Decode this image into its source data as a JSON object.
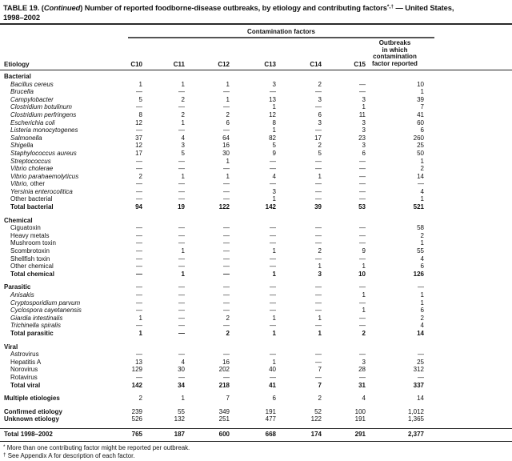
{
  "title": {
    "part1": "TABLE 19. (",
    "continued": "Continued",
    "part2": ") Number of reported foodborne-disease outbreaks, by etiology and contributing factors",
    "superscript": "*,†",
    "part3": " — United States,",
    "line2": "1998–2002"
  },
  "table": {
    "span_header": "Contamination factors",
    "etiology_header": "Etiology",
    "columns": [
      "C10",
      "C11",
      "C12",
      "C13",
      "C14",
      "C15"
    ],
    "last_col_lines": [
      "Outbreaks",
      "in which",
      "contamination",
      "factor reported"
    ],
    "sections": [
      {
        "header": "Bacterial",
        "header_values": null,
        "rows": [
          {
            "li": "Bacillus cereus",
            "vals": [
              "1",
              "1",
              "1",
              "3",
              "2",
              "—",
              "10"
            ]
          },
          {
            "li": "Brucella",
            "vals": [
              "—",
              "—",
              "—",
              "—",
              "—",
              "—",
              "1"
            ]
          },
          {
            "li": "Campylobacter",
            "vals": [
              "5",
              "2",
              "1",
              "13",
              "3",
              "3",
              "39"
            ]
          },
          {
            "li": "Clostridium botulinum",
            "vals": [
              "—",
              "—",
              "—",
              "1",
              "—",
              "1",
              "7"
            ]
          },
          {
            "li": "Clostridium perfringens",
            "vals": [
              "8",
              "2",
              "2",
              "12",
              "6",
              "11",
              "41"
            ]
          },
          {
            "li": "Escherichia coli",
            "vals": [
              "12",
              "1",
              "6",
              "8",
              "3",
              "3",
              "60"
            ]
          },
          {
            "li": "Listeria monocytogenes",
            "vals": [
              "—",
              "—",
              "—",
              "1",
              "—",
              "3",
              "6"
            ]
          },
          {
            "li": "Salmonella",
            "vals": [
              "37",
              "4",
              "64",
              "82",
              "17",
              "23",
              "260"
            ]
          },
          {
            "li": "Shigella",
            "vals": [
              "12",
              "3",
              "16",
              "5",
              "2",
              "3",
              "25"
            ]
          },
          {
            "li": "Staphylococcus aureus",
            "vals": [
              "17",
              "5",
              "30",
              "9",
              "5",
              "6",
              "50"
            ]
          },
          {
            "li": "Streptococcus",
            "vals": [
              "—",
              "—",
              "1",
              "—",
              "—",
              "—",
              "1"
            ]
          },
          {
            "li": "Vibrio cholerae",
            "vals": [
              "—",
              "—",
              "—",
              "—",
              "—",
              "—",
              "2"
            ]
          },
          {
            "li": "Vibrio parahaemolyticus",
            "vals": [
              "2",
              "1",
              "1",
              "4",
              "1",
              "—",
              "14"
            ]
          },
          {
            "li": "Vibrio,",
            "lt": " other",
            "vals": [
              "—",
              "—",
              "—",
              "—",
              "—",
              "—",
              "—"
            ]
          },
          {
            "li": "Yersinia enterocolitica",
            "vals": [
              "—",
              "—",
              "—",
              "3",
              "—",
              "—",
              "4"
            ]
          },
          {
            "lt": "Other bacterial",
            "vals": [
              "—",
              "—",
              "—",
              "1",
              "—",
              "—",
              "1"
            ]
          },
          {
            "lt": "Total bacterial",
            "bold": true,
            "vals": [
              "94",
              "19",
              "122",
              "142",
              "39",
              "53",
              "521"
            ]
          }
        ]
      },
      {
        "header": "Chemical",
        "header_values": null,
        "rows": [
          {
            "lt": "Ciguatoxin",
            "vals": [
              "—",
              "—",
              "—",
              "—",
              "—",
              "—",
              "58"
            ]
          },
          {
            "lt": "Heavy metals",
            "vals": [
              "—",
              "—",
              "—",
              "—",
              "—",
              "—",
              "2"
            ]
          },
          {
            "lt": "Mushroom toxin",
            "vals": [
              "—",
              "—",
              "—",
              "—",
              "—",
              "—",
              "1"
            ]
          },
          {
            "lt": "Scombrotoxin",
            "vals": [
              "—",
              "1",
              "—",
              "1",
              "2",
              "9",
              "55"
            ]
          },
          {
            "lt": "Shellfish toxin",
            "vals": [
              "—",
              "—",
              "—",
              "—",
              "—",
              "—",
              "4"
            ]
          },
          {
            "lt": "Other chemical",
            "vals": [
              "—",
              "—",
              "—",
              "—",
              "1",
              "1",
              "6"
            ]
          },
          {
            "lt": "Total chemical",
            "bold": true,
            "vals": [
              "—",
              "1",
              "—",
              "1",
              "3",
              "10",
              "126"
            ]
          }
        ]
      },
      {
        "header": "Parasitic",
        "header_values": [
          "—",
          "—",
          "—",
          "—",
          "—",
          "—",
          "—"
        ],
        "rows": [
          {
            "li": "Anisakis",
            "vals": [
              "—",
              "—",
              "—",
              "—",
              "—",
              "1",
              "1"
            ]
          },
          {
            "li": "Cryptosporidium parvum",
            "vals": [
              "—",
              "—",
              "—",
              "—",
              "—",
              "—",
              "1"
            ]
          },
          {
            "li": "Cyclospora cayetanensis",
            "vals": [
              "—",
              "—",
              "—",
              "—",
              "—",
              "1",
              "6"
            ]
          },
          {
            "li": "Giardia intestinalis",
            "vals": [
              "1",
              "—",
              "2",
              "1",
              "1",
              "—",
              "2"
            ]
          },
          {
            "li": "Trichinella spiralis",
            "vals": [
              "—",
              "—",
              "—",
              "—",
              "—",
              "—",
              "4"
            ]
          },
          {
            "lt": "Total parasitic",
            "bold": true,
            "vals": [
              "1",
              "—",
              "2",
              "1",
              "1",
              "2",
              "14"
            ]
          }
        ]
      },
      {
        "header": "Viral",
        "header_values": null,
        "rows": [
          {
            "lt": "Astrovirus",
            "vals": [
              "—",
              "—",
              "—",
              "—",
              "—",
              "—",
              "—"
            ]
          },
          {
            "lt": "Hepatitis A",
            "vals": [
              "13",
              "4",
              "16",
              "1",
              "—",
              "3",
              "25"
            ]
          },
          {
            "lt": "Norovirus",
            "vals": [
              "129",
              "30",
              "202",
              "40",
              "7",
              "28",
              "312"
            ]
          },
          {
            "lt": "Rotavirus",
            "vals": [
              "—",
              "—",
              "—",
              "—",
              "—",
              "—",
              "—"
            ]
          },
          {
            "lt": "Total viral",
            "bold": true,
            "vals": [
              "142",
              "34",
              "218",
              "41",
              "7",
              "31",
              "337"
            ]
          }
        ]
      }
    ],
    "summary_rows": [
      {
        "lt": "Multiple etiologies",
        "lb": true,
        "sect": true,
        "gap": true,
        "vals": [
          "2",
          "1",
          "7",
          "6",
          "2",
          "4",
          "14"
        ]
      },
      {
        "lt": "Confirmed etiology",
        "lb": true,
        "sect": true,
        "gap": true,
        "vals": [
          "239",
          "55",
          "349",
          "191",
          "52",
          "100",
          "1,012"
        ]
      },
      {
        "lt": "Unknown etiology",
        "lb": true,
        "sect": true,
        "pb": true,
        "vals": [
          "526",
          "132",
          "251",
          "477",
          "122",
          "191",
          "1,365"
        ]
      }
    ],
    "total_row": {
      "lt": "Total 1998–2002",
      "bold": true,
      "sect": true,
      "total": true,
      "vals": [
        "765",
        "187",
        "600",
        "668",
        "174",
        "291",
        "2,377"
      ]
    }
  },
  "footnotes": [
    {
      "marker": "*",
      "text": "More than one contributing factor might be reported per outbreak."
    },
    {
      "marker": "†",
      "text": "See Appendix A for description of each factor."
    }
  ]
}
